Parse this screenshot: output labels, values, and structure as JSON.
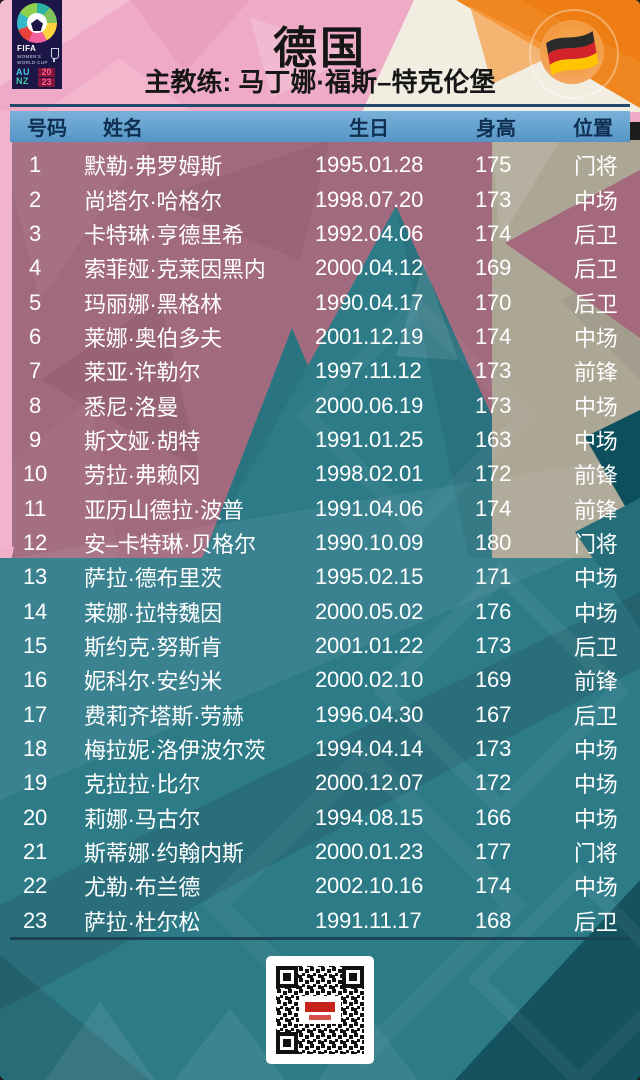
{
  "page": {
    "title": "德国",
    "coach": "主教练: 马丁娜·福斯–特克伦堡"
  },
  "logo": {
    "fifa": "FIFA",
    "womens": "WOMEN'S",
    "worldcup": "WORLD CUP",
    "au": "AU",
    "nz": "NZ",
    "year_top": "20",
    "year_bottom": "23"
  },
  "table": {
    "columns": [
      "号码",
      "姓名",
      "生日",
      "身高",
      "位置"
    ],
    "rows": [
      {
        "no": "1",
        "name": "默勒·弗罗姆斯",
        "dob": "1995.01.28",
        "height": "175",
        "pos": "门将"
      },
      {
        "no": "2",
        "name": "尚塔尔·哈格尔",
        "dob": "1998.07.20",
        "height": "173",
        "pos": "中场"
      },
      {
        "no": "3",
        "name": "卡特琳·亨德里希",
        "dob": "1992.04.06",
        "height": "174",
        "pos": "后卫"
      },
      {
        "no": "4",
        "name": "索菲娅·克莱因黑内",
        "dob": "2000.04.12",
        "height": "169",
        "pos": "后卫"
      },
      {
        "no": "5",
        "name": "玛丽娜·黑格林",
        "dob": "1990.04.17",
        "height": "170",
        "pos": "后卫"
      },
      {
        "no": "6",
        "name": "莱娜·奥伯多夫",
        "dob": "2001.12.19",
        "height": "174",
        "pos": "中场"
      },
      {
        "no": "7",
        "name": "莱亚·许勒尔",
        "dob": "1997.11.12",
        "height": "173",
        "pos": "前锋"
      },
      {
        "no": "8",
        "name": "悉尼·洛曼",
        "dob": "2000.06.19",
        "height": "173",
        "pos": "中场"
      },
      {
        "no": "9",
        "name": "斯文娅·胡特",
        "dob": "1991.01.25",
        "height": "163",
        "pos": "中场"
      },
      {
        "no": "10",
        "name": "劳拉·弗赖冈",
        "dob": "1998.02.01",
        "height": "172",
        "pos": "前锋"
      },
      {
        "no": "11",
        "name": "亚历山德拉·波普",
        "dob": "1991.04.06",
        "height": "174",
        "pos": "前锋"
      },
      {
        "no": "12",
        "name": "安–卡特琳·贝格尔",
        "dob": "1990.10.09",
        "height": "180",
        "pos": "门将"
      },
      {
        "no": "13",
        "name": "萨拉·德布里茨",
        "dob": "1995.02.15",
        "height": "171",
        "pos": "中场"
      },
      {
        "no": "14",
        "name": "莱娜·拉特魏因",
        "dob": "2000.05.02",
        "height": "176",
        "pos": "中场"
      },
      {
        "no": "15",
        "name": "斯约克·努斯肯",
        "dob": "2001.01.22",
        "height": "173",
        "pos": "后卫"
      },
      {
        "no": "16",
        "name": "妮科尔·安约米",
        "dob": "2000.02.10",
        "height": "169",
        "pos": "前锋"
      },
      {
        "no": "17",
        "name": "费莉齐塔斯·劳赫",
        "dob": "1996.04.30",
        "height": "167",
        "pos": "后卫"
      },
      {
        "no": "18",
        "name": "梅拉妮·洛伊波尔茨",
        "dob": "1994.04.14",
        "height": "173",
        "pos": "中场"
      },
      {
        "no": "19",
        "name": "克拉拉·比尔",
        "dob": "2000.12.07",
        "height": "172",
        "pos": "中场"
      },
      {
        "no": "20",
        "name": "莉娜·马古尔",
        "dob": "1994.08.15",
        "height": "166",
        "pos": "中场"
      },
      {
        "no": "21",
        "name": "斯蒂娜·约翰内斯",
        "dob": "2000.01.23",
        "height": "177",
        "pos": "门将"
      },
      {
        "no": "22",
        "name": "尤勒·布兰德",
        "dob": "2002.10.16",
        "height": "174",
        "pos": "中场"
      },
      {
        "no": "23",
        "name": "萨拉·杜尔松",
        "dob": "1991.11.17",
        "height": "168",
        "pos": "后卫"
      }
    ]
  },
  "colors": {
    "pink": "#eeaac6",
    "orange": "#f0861f",
    "cream": "#f1eee1",
    "mauve": "#a26a7e",
    "tan": "#aca695",
    "teal": "#2e7b88",
    "teal_dark": "#0d4f5c",
    "header_blue": "#5f9cc9",
    "header_text": "#0f2f52",
    "flag_black": "#2b2b2b",
    "flag_red": "#d2232a",
    "flag_gold": "#ffc400",
    "qr_center_red": "#c8241e"
  }
}
